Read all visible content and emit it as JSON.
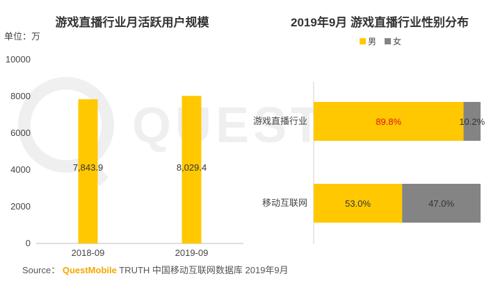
{
  "colors": {
    "male": "#FFC800",
    "female": "#848484",
    "accent": "#FFC800",
    "male_highlight_text": "#E0121B"
  },
  "chart_data": [
    {
      "type": "bar",
      "title": "游戏直播行业月活跃用户规模",
      "unit_label": "单位：万",
      "categories": [
        "2018-09",
        "2019-09"
      ],
      "values": [
        7843.9,
        8029.4
      ],
      "value_labels": [
        "7,843.9",
        "8,029.4"
      ],
      "ylim": [
        0,
        10000
      ],
      "yticks": [
        0,
        2000,
        4000,
        6000,
        8000,
        10000
      ],
      "ytick_labels": [
        "0",
        "2000",
        "4000",
        "6000",
        "8000",
        "10000"
      ],
      "grid": false
    },
    {
      "type": "bar",
      "orientation": "horizontal",
      "stacked": "percent",
      "title": "2019年9月 游戏直播行业性别分布",
      "categories": [
        "游戏直播行业",
        "移动互联网"
      ],
      "series": [
        {
          "name": "男",
          "values": [
            89.8,
            53.0
          ],
          "labels": [
            "89.8%",
            "53.0%"
          ]
        },
        {
          "name": "女",
          "values": [
            10.2,
            47.0
          ],
          "labels": [
            "10.2%",
            "47.0%"
          ]
        }
      ],
      "legend": "top",
      "grid": false
    }
  ],
  "source": {
    "prefix": "Source：",
    "brand": "QuestMobile",
    "rest": "TRUTH 中国移动互联网数据库 2019年9月"
  },
  "watermark": "QUEST"
}
